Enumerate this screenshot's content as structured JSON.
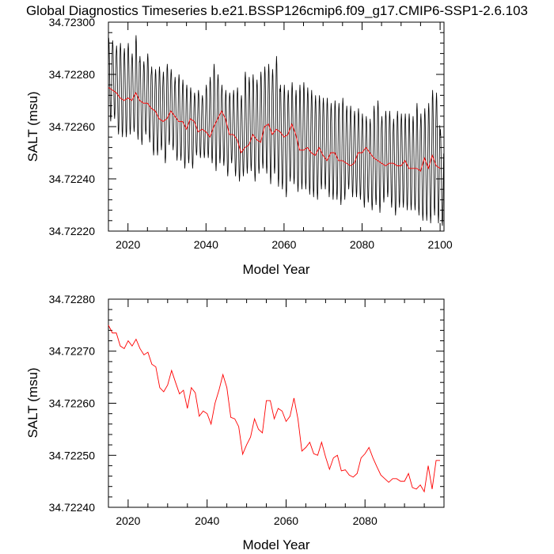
{
  "title": "Global Diagnostics Timeseries b.e21.BSSP126cmip6.f09_g17.CMIP6-SSP1-2.6.103",
  "chart_data": [
    {
      "type": "line",
      "xlabel": "Model Year",
      "ylabel": "SALT (msu)",
      "xlim": [
        2015,
        2101
      ],
      "ylim": [
        34.7222,
        34.723
      ],
      "xticks": [
        2020,
        2040,
        2060,
        2080,
        2100
      ],
      "xtick_labels": [
        "2020",
        "2040",
        "2060",
        "2080",
        "2100"
      ],
      "yticks": [
        34.7222,
        34.7224,
        34.7226,
        34.7228,
        34.723
      ],
      "ytick_labels": [
        "34.72220",
        "34.72240",
        "34.72260",
        "34.72280",
        "34.72300"
      ],
      "grid": false,
      "series": [
        {
          "color": "#000000",
          "monthly_cycle": {
            "start_year": 2015,
            "end_year": 2101,
            "annual_max": [
              34.72294,
              34.72293,
              34.72291,
              34.72292,
              34.7229,
              34.72292,
              34.72288,
              34.72295,
              34.72287,
              34.72285,
              34.72288,
              34.72283,
              34.72282,
              34.72283,
              34.72281,
              34.72284,
              34.72282,
              34.72279,
              34.7228,
              34.72278,
              34.72276,
              34.72275,
              34.72273,
              34.72274,
              34.72272,
              34.72276,
              34.72279,
              34.72284,
              34.7228,
              34.72276,
              34.72274,
              34.72273,
              34.72274,
              34.72275,
              34.72272,
              34.72281,
              34.72279,
              34.7228,
              34.72278,
              34.72281,
              34.72283,
              34.72284,
              34.72282,
              34.72287,
              34.72276,
              34.72276,
              34.72274,
              34.72277,
              34.72274,
              34.72276,
              34.72277,
              34.72275,
              34.72274,
              34.72272,
              34.72272,
              34.72271,
              34.72271,
              34.72269,
              34.7227,
              34.72269,
              34.72271,
              34.72268,
              34.72268,
              34.72266,
              34.72267,
              34.72265,
              34.72264,
              34.72263,
              34.72268,
              34.7227,
              34.72264,
              34.72266,
              34.72266,
              34.72263,
              34.72266,
              34.72265,
              34.72265,
              34.72265,
              34.72264,
              34.72269,
              34.72265,
              34.72267,
              34.72269,
              34.72274,
              34.72273,
              34.72259
            ],
            "annual_min": [
              34.72262,
              34.72263,
              34.72257,
              34.72256,
              34.72256,
              34.72257,
              34.72258,
              34.72255,
              34.72253,
              34.72257,
              34.72254,
              34.72249,
              34.72249,
              34.72251,
              34.72246,
              34.72253,
              34.72251,
              34.72247,
              34.72247,
              34.72244,
              34.72246,
              34.72244,
              34.72249,
              34.72248,
              34.72248,
              34.72248,
              34.72246,
              34.72243,
              34.72246,
              34.72245,
              34.72241,
              34.72246,
              34.72241,
              34.72239,
              34.72241,
              34.72242,
              34.72243,
              34.72239,
              34.72242,
              34.72244,
              34.72242,
              34.72238,
              34.72242,
              34.72237,
              34.72236,
              34.72233,
              34.72239,
              34.72238,
              34.72235,
              34.72236,
              34.72236,
              34.72234,
              34.72233,
              34.72232,
              34.72236,
              34.72236,
              34.72233,
              34.72232,
              34.72232,
              34.7223,
              34.72232,
              34.72236,
              34.72233,
              34.72233,
              34.72232,
              34.72229,
              34.72231,
              34.72228,
              34.7223,
              34.72227,
              34.72231,
              34.72233,
              34.72229,
              34.72226,
              34.72229,
              34.72229,
              34.72228,
              34.72228,
              34.72228,
              34.72226,
              34.72224,
              34.72224,
              34.72223,
              34.72226,
              34.72223,
              34.72222
            ]
          }
        },
        {
          "color": "#ff0000",
          "x": [
            2015,
            2016,
            2017,
            2018,
            2019,
            2020,
            2021,
            2022,
            2023,
            2024,
            2025,
            2026,
            2027,
            2028,
            2029,
            2030,
            2031,
            2032,
            2033,
            2034,
            2035,
            2036,
            2037,
            2038,
            2039,
            2040,
            2041,
            2042,
            2043,
            2044,
            2045,
            2046,
            2047,
            2048,
            2049,
            2050,
            2051,
            2052,
            2053,
            2054,
            2055,
            2056,
            2057,
            2058,
            2059,
            2060,
            2061,
            2062,
            2063,
            2064,
            2065,
            2066,
            2067,
            2068,
            2069,
            2070,
            2071,
            2072,
            2073,
            2074,
            2075,
            2076,
            2077,
            2078,
            2079,
            2080,
            2081,
            2082,
            2083,
            2084,
            2085,
            2086,
            2087,
            2088,
            2089,
            2090,
            2091,
            2092,
            2093,
            2094,
            2095,
            2096,
            2097,
            2098,
            2099,
            2100
          ],
          "y": [
            34.72275,
            34.72274,
            34.72273,
            34.72271,
            34.7227,
            34.72271,
            34.7227,
            34.72273,
            34.7227,
            34.72269,
            34.72269,
            34.72267,
            34.72266,
            34.72263,
            34.72262,
            34.72263,
            34.72266,
            34.72264,
            34.72262,
            34.72262,
            34.72259,
            34.72263,
            34.72262,
            34.72258,
            34.72259,
            34.72258,
            34.72256,
            34.7226,
            34.72263,
            34.72266,
            34.72263,
            34.72257,
            34.72257,
            34.72255,
            34.7225,
            34.72252,
            34.72253,
            34.72257,
            34.72255,
            34.72254,
            34.7226,
            34.72261,
            34.72257,
            34.72259,
            34.72258,
            34.72256,
            34.72257,
            34.72261,
            34.72257,
            34.72251,
            34.72251,
            34.72252,
            34.7225,
            34.72249,
            34.72252,
            34.72249,
            34.72247,
            34.7225,
            34.7225,
            34.72247,
            34.72247,
            34.72246,
            34.72245,
            34.72246,
            34.7225,
            34.7225,
            34.72252,
            34.7225,
            34.72248,
            34.72247,
            34.72246,
            34.72245,
            34.72246,
            34.72246,
            34.72245,
            34.72245,
            34.72247,
            34.72244,
            34.72244,
            34.72244,
            34.72243,
            34.72248,
            34.72244,
            34.72249,
            34.72245,
            34.72244
          ]
        }
      ]
    },
    {
      "type": "line",
      "xlabel": "Model Year",
      "ylabel": "SALT (msu)",
      "xlim": [
        2015,
        2100
      ],
      "ylim": [
        34.7224,
        34.7228
      ],
      "xticks": [
        2020,
        2040,
        2060,
        2080
      ],
      "xtick_labels": [
        "2020",
        "2040",
        "2060",
        "2080"
      ],
      "yticks": [
        34.7224,
        34.7225,
        34.7226,
        34.7227,
        34.7228
      ],
      "ytick_labels": [
        "34.72240",
        "34.72250",
        "34.72260",
        "34.72270",
        "34.72280"
      ],
      "grid": false,
      "series": [
        {
          "color": "#ff0000",
          "x": [
            2015,
            2016,
            2017,
            2018,
            2019,
            2020,
            2021,
            2022,
            2023,
            2024,
            2025,
            2026,
            2027,
            2028,
            2029,
            2030,
            2031,
            2032,
            2033,
            2034,
            2035,
            2036,
            2037,
            2038,
            2039,
            2040,
            2041,
            2042,
            2043,
            2044,
            2045,
            2046,
            2047,
            2048,
            2049,
            2050,
            2051,
            2052,
            2053,
            2054,
            2055,
            2056,
            2057,
            2058,
            2059,
            2060,
            2061,
            2062,
            2063,
            2064,
            2065,
            2066,
            2067,
            2068,
            2069,
            2070,
            2071,
            2072,
            2073,
            2074,
            2075,
            2076,
            2077,
            2078,
            2079,
            2080,
            2081,
            2082,
            2083,
            2084,
            2085,
            2086,
            2087,
            2088,
            2089,
            2090,
            2091,
            2092,
            2093,
            2094,
            2095,
            2096,
            2097,
            2098,
            2099
          ],
          "y": [
            34.72275,
            34.722735,
            34.722735,
            34.72271,
            34.722705,
            34.72272,
            34.72271,
            34.722723,
            34.722705,
            34.722693,
            34.722698,
            34.722675,
            34.72267,
            34.72263,
            34.722622,
            34.722635,
            34.722663,
            34.72264,
            34.722618,
            34.722625,
            34.72259,
            34.72263,
            34.72262,
            34.722575,
            34.722585,
            34.72258,
            34.72256,
            34.7226,
            34.722625,
            34.722655,
            34.72263,
            34.722573,
            34.72257,
            34.722555,
            34.722502,
            34.72252,
            34.722535,
            34.72257,
            34.72255,
            34.722543,
            34.722605,
            34.722605,
            34.72257,
            34.72259,
            34.722585,
            34.722565,
            34.722575,
            34.72261,
            34.72257,
            34.722508,
            34.722515,
            34.722525,
            34.722503,
            34.7225,
            34.722525,
            34.722497,
            34.722473,
            34.722495,
            34.7225,
            34.72247,
            34.722472,
            34.722462,
            34.722458,
            34.722465,
            34.722495,
            34.722503,
            34.722515,
            34.722495,
            34.722478,
            34.722462,
            34.722455,
            34.722448,
            34.722455,
            34.722455,
            34.72245,
            34.72245,
            34.722465,
            34.722438,
            34.722435,
            34.722443,
            34.72243,
            34.72248,
            34.722435,
            34.72249,
            34.72249
          ]
        }
      ]
    }
  ]
}
